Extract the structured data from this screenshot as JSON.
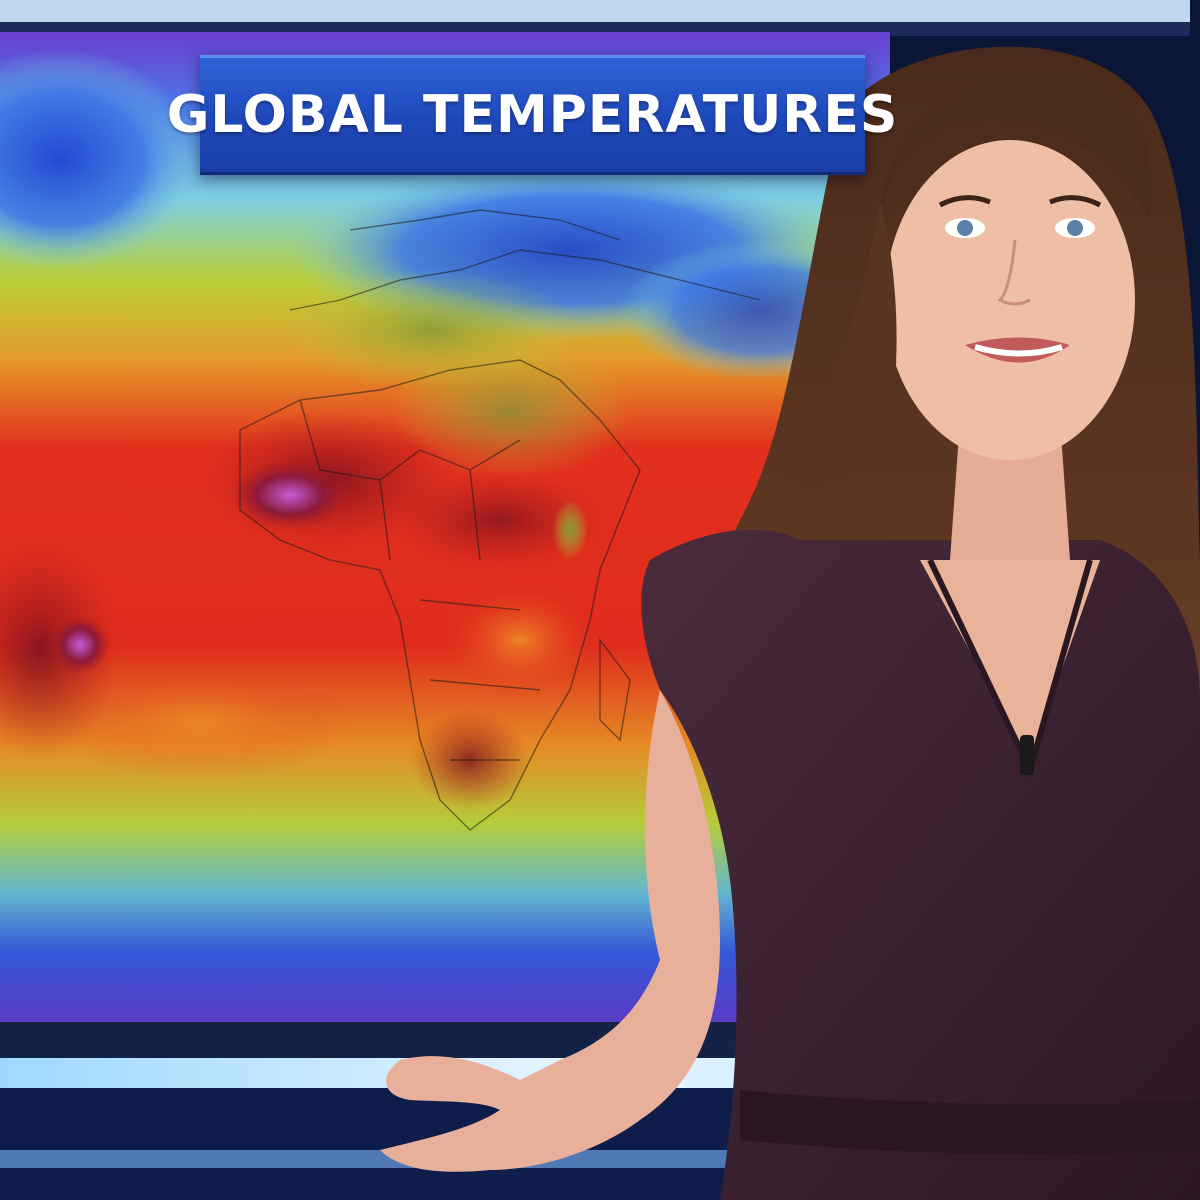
{
  "graphic": {
    "title": "GLOBAL TEMPERATURES"
  },
  "colors": {
    "banner_blue": "#1e48b9",
    "heat_red": "#d9241b",
    "extreme_magenta": "#b04fc8",
    "mild_yellow_green": "#b8c93a",
    "cold_blue": "#3a6fe0",
    "dress_plum": "#3a2230"
  }
}
